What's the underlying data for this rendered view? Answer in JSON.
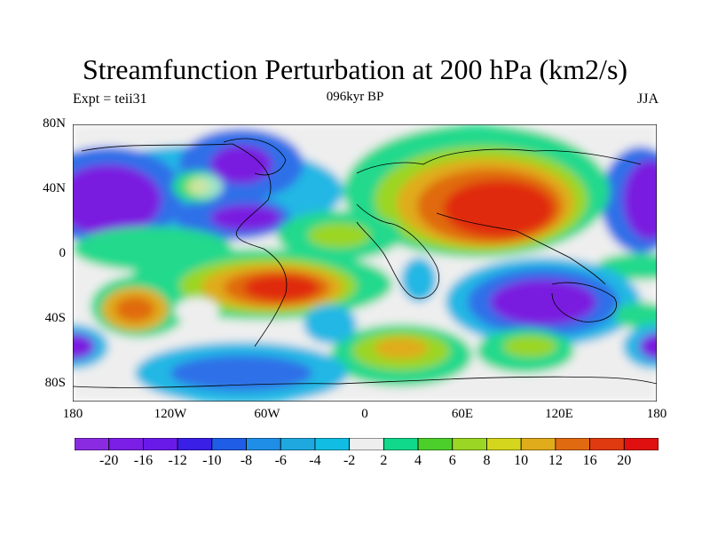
{
  "title": "Streamfunction Perturbation at 200 hPa (km2/s)",
  "subtitle_left": "Expt = teii31",
  "subtitle_center": "096kyr BP",
  "subtitle_right": "JJA",
  "y_axis_labels": [
    "80N",
    "40N",
    "0",
    "40S",
    "80S"
  ],
  "x_axis_labels": [
    "180",
    "120W",
    "60W",
    "0",
    "60E",
    "120E",
    "180"
  ],
  "colorbar": {
    "labels": [
      "-20",
      "-16",
      "-12",
      "-10",
      "-8",
      "-6",
      "-4",
      "-2",
      "2",
      "4",
      "6",
      "8",
      "10",
      "12",
      "16",
      "20"
    ],
    "colors": [
      "#8a2be2",
      "#7b1ee6",
      "#6a1ae8",
      "#3a1fe6",
      "#1f5de6",
      "#1f8ee6",
      "#1fa8e0",
      "#11bde2",
      "#eeeeee",
      "#11d98c",
      "#4ccf2a",
      "#9bd624",
      "#d4d61e",
      "#e0ac1c",
      "#e06a10",
      "#e03a10",
      "#e01010"
    ]
  },
  "map_colors": {
    "strong_negative": "#7a1fe0",
    "negative": "#2f6fe8",
    "weak_negative": "#22b7e4",
    "neutral": "#eeeeee",
    "weak_positive": "#22d98c",
    "positive": "#9bd624",
    "strong_positive": "#e02a10",
    "coastline": "#000000"
  }
}
